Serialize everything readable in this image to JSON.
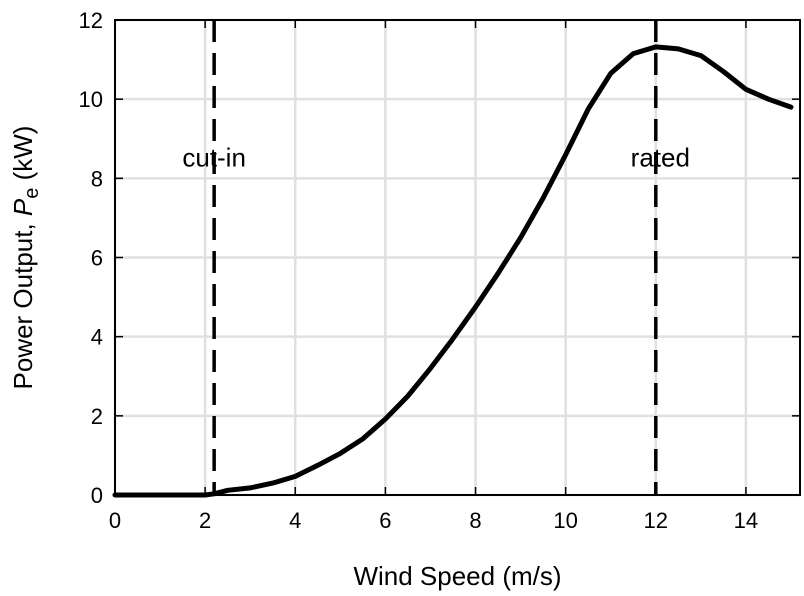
{
  "chart_data": {
    "type": "line",
    "title": "",
    "xlabel": "Wind Speed (m/s)",
    "ylabel_main": "Power Output, ",
    "ylabel_var": "P",
    "ylabel_sub": "e",
    "ylabel_unit": " (kW)",
    "xlim": [
      0,
      15.2
    ],
    "ylim": [
      0,
      12
    ],
    "xticks": [
      0,
      2,
      4,
      6,
      8,
      10,
      12,
      14
    ],
    "yticks": [
      0,
      2,
      4,
      6,
      8,
      10,
      12
    ],
    "grid": true,
    "legend": "none",
    "line_color": "#000000",
    "grid_color": "#e0e0e0",
    "series": [
      {
        "x": [
          0,
          1,
          2,
          2.2,
          2.5,
          3,
          3.5,
          4,
          4.5,
          5,
          5.5,
          6,
          6.5,
          7,
          7.5,
          8,
          8.5,
          9,
          9.5,
          10,
          10.5,
          11,
          11.5,
          12,
          12.5,
          13,
          13.5,
          14,
          14.5,
          15
        ],
        "y": [
          0,
          0,
          0,
          0.03,
          0.12,
          0.18,
          0.3,
          0.47,
          0.75,
          1.05,
          1.42,
          1.92,
          2.5,
          3.2,
          3.95,
          4.75,
          5.6,
          6.5,
          7.5,
          8.6,
          9.75,
          10.65,
          11.15,
          11.32,
          11.27,
          11.1,
          10.7,
          10.25,
          10.0,
          9.8
        ]
      }
    ],
    "vlines": [
      {
        "x": 2.2,
        "style": "dashed"
      },
      {
        "x": 12,
        "style": "dashed"
      }
    ],
    "annotations": [
      {
        "text": "cut-in",
        "x": 2.2,
        "y": 8.3
      },
      {
        "text": "rated",
        "x": 12.1,
        "y": 8.3
      }
    ]
  }
}
